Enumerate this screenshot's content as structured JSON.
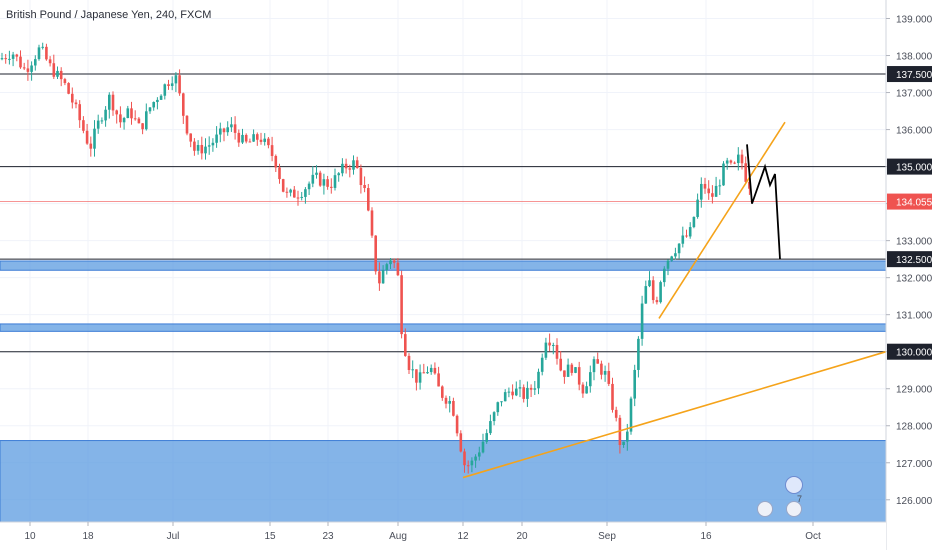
{
  "chart_data": {
    "type": "candlestick",
    "title": "British Pound / Japanese Yen, 240, FXCM",
    "ylim": [
      125.4,
      139.5
    ],
    "y_ticks": [
      126.0,
      127.0,
      128.0,
      129.0,
      130.0,
      131.0,
      132.0,
      133.0,
      134.0,
      135.0,
      136.0,
      137.0,
      138.0,
      139.0
    ],
    "y_tick_labels": [
      "126.000",
      "127.000",
      "128.000",
      "129.000",
      "130.000",
      "131.000",
      "132.000",
      "133.000",
      "134.000",
      "135.000",
      "136.000",
      "137.000",
      "138.000",
      "139.000"
    ],
    "x_tick_labels": [
      "10",
      "18",
      "Jul",
      "15",
      "23",
      "Aug",
      "12",
      "20",
      "Sep",
      "16",
      "Oct"
    ],
    "price_labels": [
      {
        "text": "137.500",
        "value": 137.5,
        "style": "dark"
      },
      {
        "text": "135.000",
        "value": 135.0,
        "style": "dark"
      },
      {
        "text": "134.055",
        "value": 134.055,
        "style": "current"
      },
      {
        "text": "132.500",
        "value": 132.5,
        "style": "dark"
      },
      {
        "text": "130.000",
        "value": 130.0,
        "style": "dark"
      }
    ],
    "horizontal_lines": [
      137.5,
      135.0,
      132.5,
      130.0
    ],
    "current_price": 134.055,
    "zones": [
      {
        "from": 132.2,
        "to": 132.45
      },
      {
        "from": 130.55,
        "to": 130.75
      },
      {
        "from": 125.4,
        "to": 127.6
      }
    ],
    "price_series": [
      {
        "x": 0,
        "y": 137.9
      },
      {
        "x": 12,
        "y": 138.1
      },
      {
        "x": 25,
        "y": 137.6
      },
      {
        "x": 40,
        "y": 138.2
      },
      {
        "x": 50,
        "y": 137.7
      },
      {
        "x": 65,
        "y": 137.2
      },
      {
        "x": 75,
        "y": 136.6
      },
      {
        "x": 90,
        "y": 135.5
      },
      {
        "x": 100,
        "y": 136.3
      },
      {
        "x": 110,
        "y": 136.9
      },
      {
        "x": 120,
        "y": 136.2
      },
      {
        "x": 130,
        "y": 136.5
      },
      {
        "x": 140,
        "y": 136.0
      },
      {
        "x": 150,
        "y": 136.6
      },
      {
        "x": 160,
        "y": 137.0
      },
      {
        "x": 168,
        "y": 137.3
      },
      {
        "x": 175,
        "y": 137.5
      },
      {
        "x": 185,
        "y": 136.2
      },
      {
        "x": 195,
        "y": 135.4
      },
      {
        "x": 210,
        "y": 135.6
      },
      {
        "x": 230,
        "y": 136.1
      },
      {
        "x": 245,
        "y": 135.6
      },
      {
        "x": 260,
        "y": 135.8
      },
      {
        "x": 275,
        "y": 135.2
      },
      {
        "x": 285,
        "y": 134.2
      },
      {
        "x": 300,
        "y": 134.3
      },
      {
        "x": 315,
        "y": 134.7
      },
      {
        "x": 330,
        "y": 134.5
      },
      {
        "x": 345,
        "y": 135.0
      },
      {
        "x": 355,
        "y": 135.1
      },
      {
        "x": 365,
        "y": 134.3
      },
      {
        "x": 372,
        "y": 133.0
      },
      {
        "x": 378,
        "y": 131.8
      },
      {
        "x": 385,
        "y": 132.3
      },
      {
        "x": 392,
        "y": 132.6
      },
      {
        "x": 398,
        "y": 132.0
      },
      {
        "x": 402,
        "y": 130.5
      },
      {
        "x": 408,
        "y": 129.7
      },
      {
        "x": 418,
        "y": 129.2
      },
      {
        "x": 430,
        "y": 129.6
      },
      {
        "x": 440,
        "y": 128.9
      },
      {
        "x": 452,
        "y": 128.6
      },
      {
        "x": 458,
        "y": 127.8
      },
      {
        "x": 465,
        "y": 126.9
      },
      {
        "x": 472,
        "y": 127.0
      },
      {
        "x": 480,
        "y": 127.4
      },
      {
        "x": 490,
        "y": 128.0
      },
      {
        "x": 500,
        "y": 128.7
      },
      {
        "x": 512,
        "y": 129.0
      },
      {
        "x": 525,
        "y": 128.8
      },
      {
        "x": 537,
        "y": 129.2
      },
      {
        "x": 545,
        "y": 130.4
      },
      {
        "x": 553,
        "y": 130.3
      },
      {
        "x": 562,
        "y": 129.4
      },
      {
        "x": 572,
        "y": 129.6
      },
      {
        "x": 583,
        "y": 129.0
      },
      {
        "x": 595,
        "y": 129.7
      },
      {
        "x": 605,
        "y": 129.4
      },
      {
        "x": 612,
        "y": 128.6
      },
      {
        "x": 618,
        "y": 127.9
      },
      {
        "x": 622,
        "y": 127.2
      },
      {
        "x": 628,
        "y": 128.0
      },
      {
        "x": 635,
        "y": 129.5
      },
      {
        "x": 642,
        "y": 131.2
      },
      {
        "x": 648,
        "y": 132.0
      },
      {
        "x": 655,
        "y": 131.2
      },
      {
        "x": 663,
        "y": 132.3
      },
      {
        "x": 672,
        "y": 132.7
      },
      {
        "x": 682,
        "y": 133.0
      },
      {
        "x": 690,
        "y": 133.2
      },
      {
        "x": 697,
        "y": 134.0
      },
      {
        "x": 703,
        "y": 134.6
      },
      {
        "x": 710,
        "y": 134.1
      },
      {
        "x": 718,
        "y": 134.5
      },
      {
        "x": 726,
        "y": 135.1
      },
      {
        "x": 733,
        "y": 134.9
      },
      {
        "x": 740,
        "y": 135.3
      },
      {
        "x": 746,
        "y": 134.7
      },
      {
        "x": 752,
        "y": 134.4
      }
    ],
    "annotations": {
      "support_line": {
        "x1": 463,
        "y1": 126.6,
        "x2": 886,
        "y2": 130.0
      },
      "channel_line": {
        "x1": 659,
        "y1": 130.9,
        "x2": 785,
        "y2": 136.2
      },
      "projection": [
        {
          "x": 747,
          "y": 135.6
        },
        {
          "x": 752,
          "y": 134.0
        },
        {
          "x": 765,
          "y": 135.0
        },
        {
          "x": 770,
          "y": 134.5
        },
        {
          "x": 775,
          "y": 134.8
        },
        {
          "x": 780,
          "y": 132.5
        }
      ]
    },
    "event_badge": "7",
    "colors": {
      "up": "#26a69a",
      "down": "#ef5350",
      "zone": "#5b9be0",
      "trend": "#f5a31a",
      "current": "#ef5350",
      "axis_text": "#4a4e59"
    }
  }
}
